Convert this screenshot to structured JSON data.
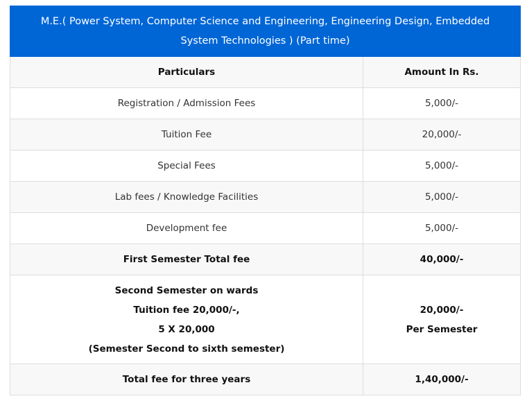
{
  "table": {
    "title": "M.E.( Power System, Computer Science and Engineering, Engineering Design, Embedded System Technologies ) (Part time)",
    "header_color": "#0066d6",
    "columns": {
      "particulars": "Particulars",
      "amount": "Amount In Rs."
    },
    "rows": [
      {
        "particulars": "Registration / Admission Fees",
        "amount": "5,000/-"
      },
      {
        "particulars": "Tuition Fee",
        "amount": "20,000/-"
      },
      {
        "particulars": "Special Fees",
        "amount": "5,000/-"
      },
      {
        "particulars": "Lab fees / Knowledge Facilities",
        "amount": "5,000/-"
      },
      {
        "particulars": "Development fee",
        "amount": "5,000/-"
      },
      {
        "particulars": "First Semester Total fee",
        "amount": "40,000/-"
      }
    ],
    "second_semester": {
      "particulars_lines": [
        "Second Semester on wards",
        "Tuition fee 20,000/-,",
        "5 X 20,000",
        "(Semester Second to sixth semester)"
      ],
      "amount_lines": [
        "20,000/-",
        "Per Semester"
      ]
    },
    "total": {
      "particulars": "Total fee for three years",
      "amount": "1,40,000/-"
    }
  }
}
